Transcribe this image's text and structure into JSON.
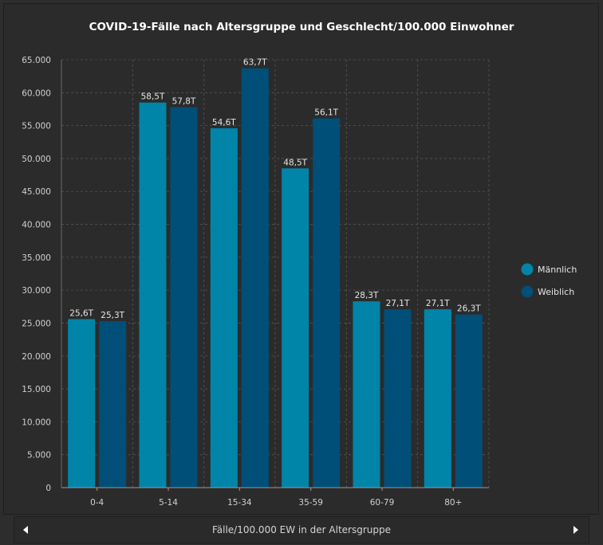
{
  "chart_data": {
    "type": "bar",
    "title": "COVID-19-Fälle nach Altersgruppe und Geschlecht/100.000 Einwohner",
    "categories": [
      "0-4",
      "5-14",
      "15-34",
      "35-59",
      "60-79",
      "80+"
    ],
    "series": [
      {
        "name": "Männlich",
        "color": "#0085a8",
        "values": [
          25600,
          58500,
          54600,
          48500,
          28300,
          27100
        ],
        "labels": [
          "25,6T",
          "58,5T",
          "54,6T",
          "48,5T",
          "28,3T",
          "27,1T"
        ]
      },
      {
        "name": "Weiblich",
        "color": "#004f78",
        "values": [
          25300,
          57800,
          63700,
          56100,
          27100,
          26300
        ],
        "labels": [
          "25,3T",
          "57,8T",
          "63,7T",
          "56,1T",
          "27,1T",
          "26,3T"
        ]
      }
    ],
    "ylim": [
      0,
      65000
    ],
    "yticks": [
      0,
      5000,
      10000,
      15000,
      20000,
      25000,
      30000,
      35000,
      40000,
      45000,
      50000,
      55000,
      60000,
      65000
    ],
    "ytick_labels": [
      "0",
      "5.000",
      "10.000",
      "15.000",
      "20.000",
      "25.000",
      "30.000",
      "35.000",
      "40.000",
      "45.000",
      "50.000",
      "55.000",
      "60.000",
      "65.000"
    ],
    "grid": true,
    "legend_position": "right"
  },
  "footer": {
    "label": "Fälle/100.000 EW in der Altersgruppe"
  }
}
